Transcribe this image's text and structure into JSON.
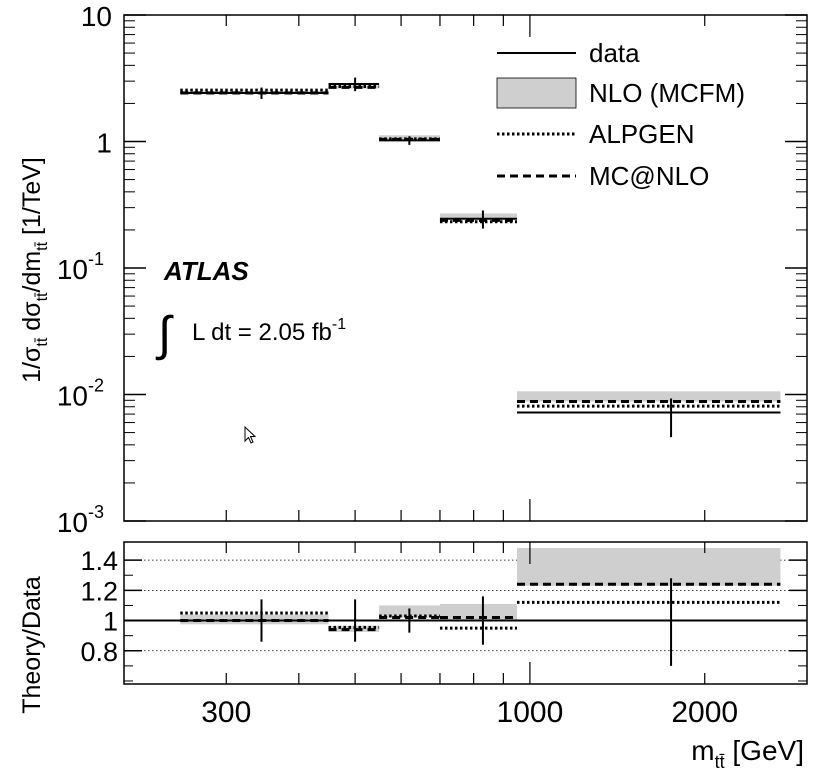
{
  "chart_data": [
    {
      "type": "step",
      "ylabel": "1/σ_tt̄ dσ_tt̄/dm_tt̄ [1/TeV]",
      "ylabel_parts": {
        "pre": "1/σ",
        "sub1": "tt̄",
        "mid": " dσ",
        "sub2": "tt̄",
        "post1": "/dm",
        "sub3": "tt̄",
        "post2": " [1/TeV]"
      },
      "y_scale": "log",
      "ylim": [
        0.001,
        10
      ],
      "y_ticks": [
        {
          "value": 10,
          "mant": "10",
          "exp": ""
        },
        {
          "value": 1,
          "mant": "1",
          "exp": ""
        },
        {
          "value": 0.1,
          "mant": "10",
          "exp": "-1"
        },
        {
          "value": 0.01,
          "mant": "10",
          "exp": "-2"
        },
        {
          "value": 0.001,
          "mant": "10",
          "exp": "-3"
        }
      ],
      "bins": [
        {
          "lo": 250,
          "hi": 450,
          "center": 345,
          "data": 2.42,
          "err_lo": 0.25,
          "err_hi": 0.25,
          "nlo_lo": 2.37,
          "nlo_hi": 2.52,
          "alpgen": 2.55,
          "mcatnlo": 2.42
        },
        {
          "lo": 450,
          "hi": 550,
          "center": 500,
          "data": 2.85,
          "err_lo": 0.35,
          "err_hi": 0.35,
          "nlo_lo": 2.62,
          "nlo_hi": 2.77,
          "alpgen": 2.72,
          "mcatnlo": 2.68
        },
        {
          "lo": 550,
          "hi": 700,
          "center": 620,
          "data": 1.02,
          "err_lo": 0.08,
          "err_hi": 0.08,
          "nlo_lo": 1.03,
          "nlo_hi": 1.12,
          "alpgen": 1.05,
          "mcatnlo": 1.04
        },
        {
          "lo": 700,
          "hi": 950,
          "center": 830,
          "data": 0.245,
          "err_lo": 0.04,
          "err_hi": 0.04,
          "nlo_lo": 0.245,
          "nlo_hi": 0.27,
          "alpgen": 0.232,
          "mcatnlo": 0.238
        },
        {
          "lo": 950,
          "hi": 2700,
          "center": 1750,
          "data": 0.0072,
          "err_lo": 0.0026,
          "err_hi": 0.0021,
          "nlo_lo": 0.0088,
          "nlo_hi": 0.0106,
          "alpgen": 0.0081,
          "mcatnlo": 0.0088
        }
      ],
      "legend": [
        {
          "label": "data",
          "style": "solid"
        },
        {
          "label": "NLO (MCFM)",
          "style": "band"
        },
        {
          "label": "ALPGEN",
          "style": "dotted"
        },
        {
          "label": "MC@NLO",
          "style": "dashed"
        }
      ],
      "legend_position": "top-right",
      "annotations": {
        "experiment": "ATLAS",
        "lumi_integral": "∫",
        "lumi_text": "L dt = 2.05 fb",
        "lumi_exp": "-1"
      }
    },
    {
      "type": "step",
      "ylabel": "Theory/Data",
      "xlabel": "m_tt̄ [GeV]",
      "xlabel_parts": {
        "pre": "m",
        "sub": "tt̄",
        "post": " [GeV]"
      },
      "x_scale": "log",
      "xlim": [
        200,
        3000
      ],
      "x_ticks": [
        {
          "value": 300,
          "label": "300"
        },
        {
          "value": 1000,
          "label": "1000"
        },
        {
          "value": 2000,
          "label": "2000"
        }
      ],
      "ylim": [
        0.58,
        1.52
      ],
      "y_ticks": [
        {
          "value": 0.8,
          "label": "0.8"
        },
        {
          "value": 1,
          "label": "1"
        },
        {
          "value": 1.2,
          "label": "1.2"
        },
        {
          "value": 1.4,
          "label": "1.4"
        }
      ],
      "grid_y": [
        0.8,
        1.2,
        1.4
      ],
      "reference_line": 1,
      "bins": [
        {
          "lo": 250,
          "hi": 450,
          "center": 345,
          "err": 0.14,
          "nlo_lo": 0.975,
          "nlo_hi": 1.04,
          "alpgen": 1.05,
          "mcatnlo": 1.0
        },
        {
          "lo": 450,
          "hi": 550,
          "center": 500,
          "err": 0.14,
          "nlo_lo": 0.925,
          "nlo_hi": 0.965,
          "alpgen": 0.955,
          "mcatnlo": 0.94
        },
        {
          "lo": 550,
          "hi": 700,
          "center": 620,
          "err": 0.08,
          "nlo_lo": 1.02,
          "nlo_hi": 1.1,
          "alpgen": 1.03,
          "mcatnlo": 1.02
        },
        {
          "lo": 700,
          "hi": 950,
          "center": 830,
          "err": 0.16,
          "nlo_lo": 1.0,
          "nlo_hi": 1.11,
          "alpgen": 0.95,
          "mcatnlo": 1.02
        },
        {
          "lo": 950,
          "hi": 2700,
          "center": 1750,
          "err_lo": 0.3,
          "err_hi": 0.28,
          "nlo_lo": 1.23,
          "nlo_hi": 1.48,
          "alpgen": 1.12,
          "mcatnlo": 1.24
        }
      ]
    }
  ]
}
